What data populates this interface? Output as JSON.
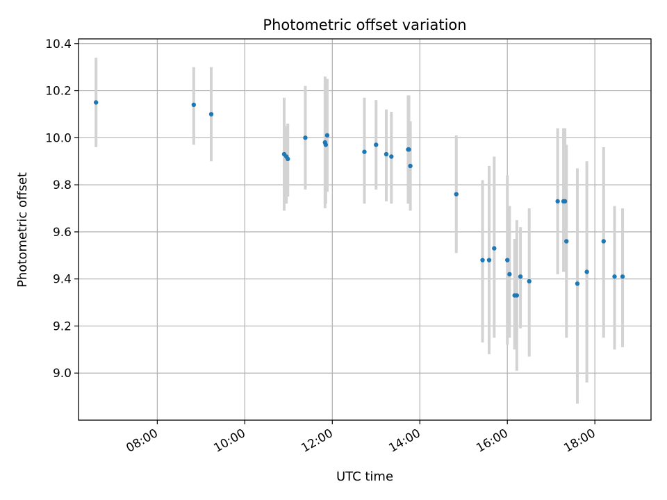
{
  "chart_data": {
    "type": "scatter",
    "title": "Photometric offset variation",
    "xlabel": "UTC time",
    "ylabel": "Photometric offset",
    "xlim": [
      "06:12",
      "19:17"
    ],
    "ylim": [
      8.8,
      10.42
    ],
    "x_ticks": [
      "08:00",
      "10:00",
      "12:00",
      "14:00",
      "16:00",
      "18:00"
    ],
    "y_ticks": [
      "9.0",
      "9.2",
      "9.4",
      "9.6",
      "9.8",
      "10.0",
      "10.2",
      "10.4"
    ],
    "grid": true,
    "marker_color": "#1f77b4",
    "errorbar_color": "#d3d3d3",
    "points": [
      {
        "x": "06:36",
        "y": 10.15,
        "lo": 9.96,
        "hi": 10.34
      },
      {
        "x": "08:50",
        "y": 10.14,
        "lo": 9.97,
        "hi": 10.3
      },
      {
        "x": "09:14",
        "y": 10.1,
        "lo": 9.9,
        "hi": 10.3
      },
      {
        "x": "10:54",
        "y": 9.93,
        "lo": 9.69,
        "hi": 10.17
      },
      {
        "x": "10:57",
        "y": 9.92,
        "lo": 9.72,
        "hi": 10.05
      },
      {
        "x": "10:59",
        "y": 9.91,
        "lo": 9.75,
        "hi": 10.06
      },
      {
        "x": "11:23",
        "y": 10.0,
        "lo": 9.78,
        "hi": 10.22
      },
      {
        "x": "11:50",
        "y": 9.98,
        "lo": 9.7,
        "hi": 10.26
      },
      {
        "x": "11:51",
        "y": 9.97,
        "lo": 9.72,
        "hi": 10.24
      },
      {
        "x": "11:53",
        "y": 10.01,
        "lo": 9.77,
        "hi": 10.25
      },
      {
        "x": "12:44",
        "y": 9.94,
        "lo": 9.72,
        "hi": 10.17
      },
      {
        "x": "13:00",
        "y": 9.97,
        "lo": 9.78,
        "hi": 10.16
      },
      {
        "x": "13:14",
        "y": 9.93,
        "lo": 9.73,
        "hi": 10.12
      },
      {
        "x": "13:21",
        "y": 9.92,
        "lo": 9.72,
        "hi": 10.11
      },
      {
        "x": "13:44",
        "y": 9.95,
        "lo": 9.72,
        "hi": 10.18
      },
      {
        "x": "13:45",
        "y": 9.95,
        "lo": 9.75,
        "hi": 10.18
      },
      {
        "x": "13:47",
        "y": 9.88,
        "lo": 9.69,
        "hi": 10.07
      },
      {
        "x": "14:50",
        "y": 9.76,
        "lo": 9.51,
        "hi": 10.01
      },
      {
        "x": "15:26",
        "y": 9.48,
        "lo": 9.13,
        "hi": 9.82
      },
      {
        "x": "15:35",
        "y": 9.48,
        "lo": 9.08,
        "hi": 9.88
      },
      {
        "x": "15:42",
        "y": 9.53,
        "lo": 9.15,
        "hi": 9.92
      },
      {
        "x": "16:00",
        "y": 9.48,
        "lo": 9.12,
        "hi": 9.84
      },
      {
        "x": "16:03",
        "y": 9.42,
        "lo": 9.15,
        "hi": 9.71
      },
      {
        "x": "16:10",
        "y": 9.33,
        "lo": 9.1,
        "hi": 9.57
      },
      {
        "x": "16:13",
        "y": 9.33,
        "lo": 9.01,
        "hi": 9.65
      },
      {
        "x": "16:18",
        "y": 9.41,
        "lo": 9.19,
        "hi": 9.62
      },
      {
        "x": "16:30",
        "y": 9.39,
        "lo": 9.07,
        "hi": 9.7
      },
      {
        "x": "17:09",
        "y": 9.73,
        "lo": 9.42,
        "hi": 10.04
      },
      {
        "x": "17:17",
        "y": 9.73,
        "lo": 9.43,
        "hi": 10.04
      },
      {
        "x": "17:19",
        "y": 9.73,
        "lo": 9.43,
        "hi": 10.04
      },
      {
        "x": "17:21",
        "y": 9.56,
        "lo": 9.15,
        "hi": 9.97
      },
      {
        "x": "17:36",
        "y": 9.38,
        "lo": 8.87,
        "hi": 9.87
      },
      {
        "x": "17:49",
        "y": 9.43,
        "lo": 8.96,
        "hi": 9.9
      },
      {
        "x": "18:12",
        "y": 9.56,
        "lo": 9.15,
        "hi": 9.96
      },
      {
        "x": "18:27",
        "y": 9.41,
        "lo": 9.1,
        "hi": 9.71
      },
      {
        "x": "18:38",
        "y": 9.41,
        "lo": 9.11,
        "hi": 9.7
      }
    ]
  }
}
